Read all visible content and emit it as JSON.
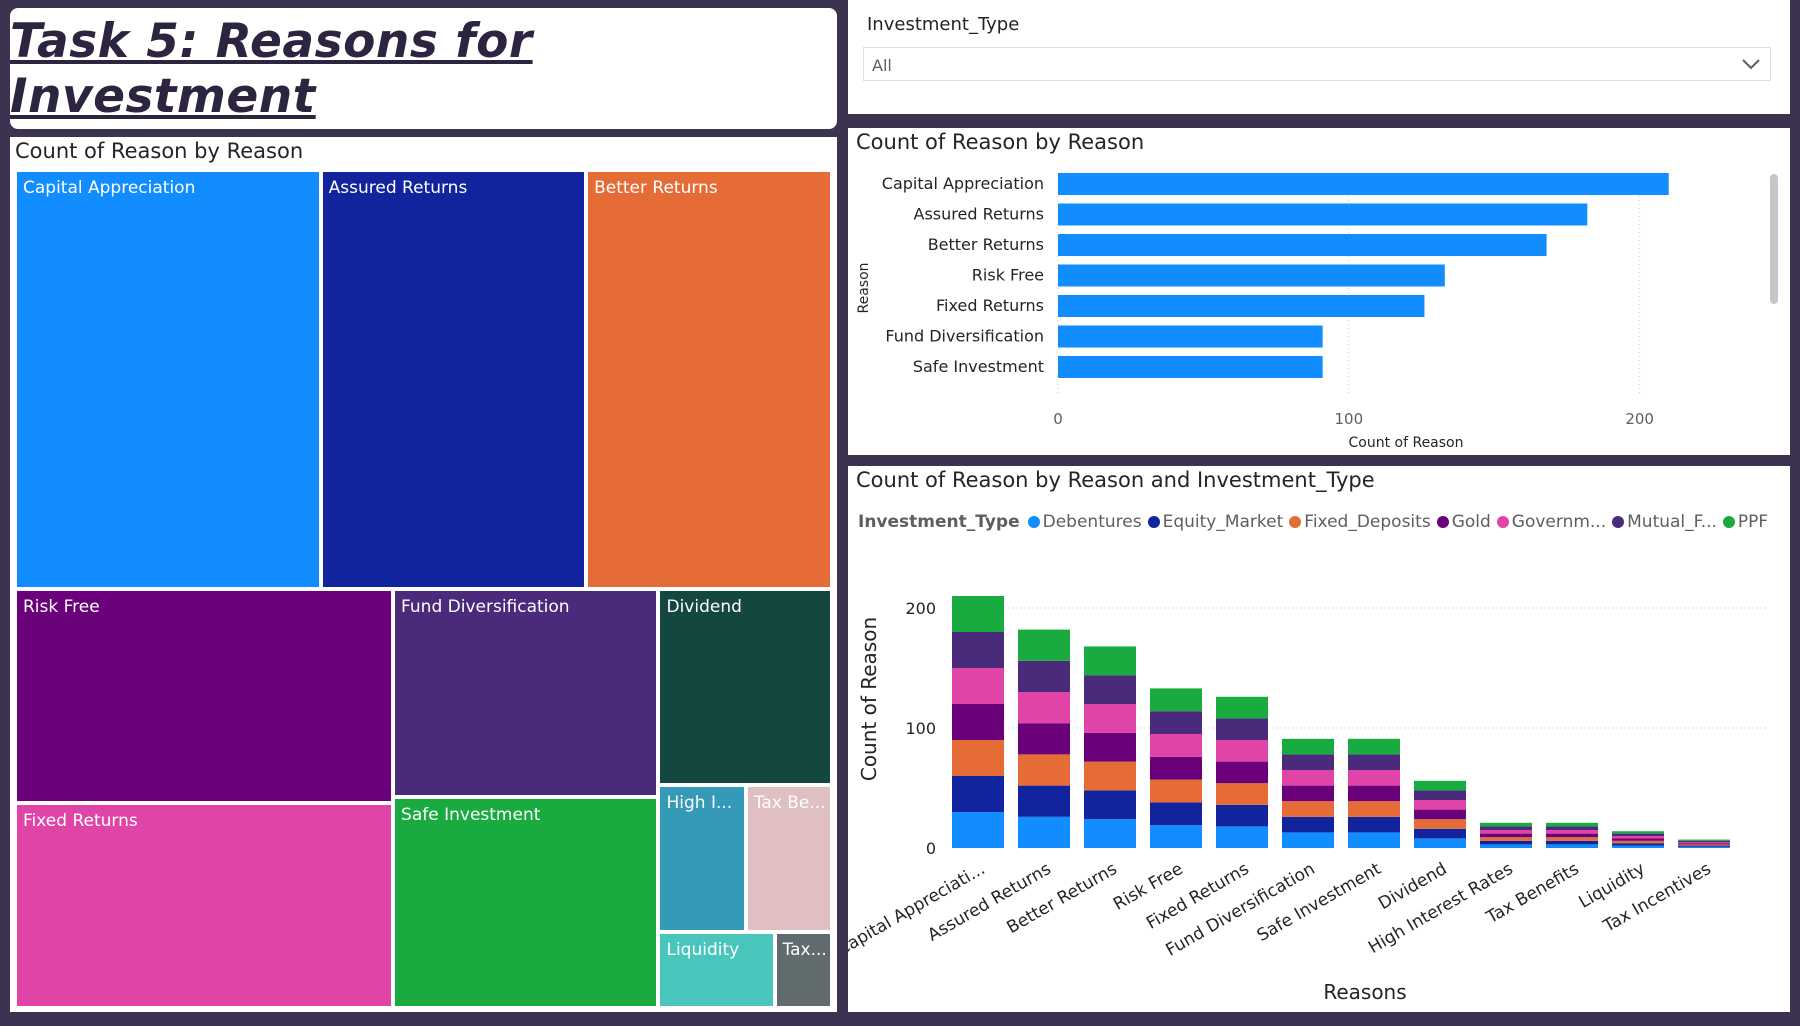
{
  "header": {
    "title": "Task 5: Reasons for Investment"
  },
  "slicer": {
    "label": "Investment_Type",
    "value": "All"
  },
  "treemap": {
    "title": "Count of Reason by Reason",
    "cells": [
      {
        "label": "Capital Appreciation",
        "color": "#118dff"
      },
      {
        "label": "Assured Returns",
        "color": "#12239e"
      },
      {
        "label": "Better Returns",
        "color": "#e66c37"
      },
      {
        "label": "Risk Free",
        "color": "#6b007b"
      },
      {
        "label": "Fixed Returns",
        "color": "#e044a7"
      },
      {
        "label": "Fund Diversification",
        "color": "#4a2b7b"
      },
      {
        "label": "Safe Investment",
        "color": "#1aab40"
      },
      {
        "label": "Dividend",
        "color": "#134740"
      },
      {
        "label": "High I...",
        "color": "#3599b8"
      },
      {
        "label": "Tax Be...",
        "color": "#dfbfbf"
      },
      {
        "label": "Liquidity",
        "color": "#4ac5bb"
      },
      {
        "label": "Tax...",
        "color": "#5f6b6d"
      }
    ]
  },
  "bar_chart": {
    "title": "Count of Reason by Reason",
    "bar_color": "#118dff",
    "chart_data": {
      "type": "bar",
      "orientation": "horizontal",
      "categories": [
        "Capital Appreciation",
        "Assured Returns",
        "Better Returns",
        "Risk Free",
        "Fixed Returns",
        "Fund Diversification",
        "Safe Investment"
      ],
      "values": [
        210,
        182,
        168,
        133,
        126,
        91,
        91
      ],
      "xlabel": "Count of Reason",
      "ylabel": "Reason",
      "xlim": [
        0,
        240
      ],
      "xticks": [
        "0",
        "100",
        "200"
      ]
    }
  },
  "stacked_chart": {
    "title": "Count of Reason by Reason and Investment_Type",
    "legend_title": "Investment_Type",
    "legend": [
      {
        "name": "Debentures",
        "color": "#118dff"
      },
      {
        "name": "Equity_Market",
        "color": "#12239e"
      },
      {
        "name": "Fixed_Deposits",
        "color": "#e66c37"
      },
      {
        "name": "Gold",
        "color": "#6b007b"
      },
      {
        "name": "Governm...",
        "color": "#e044a7"
      },
      {
        "name": "Mutual_F...",
        "color": "#4a2b7b"
      },
      {
        "name": "PPF",
        "color": "#1aab40"
      }
    ],
    "chart_data": {
      "type": "bar",
      "stacked": true,
      "categories": [
        "Capital Appreciati...",
        "Assured Returns",
        "Better Returns",
        "Risk Free",
        "Fixed Returns",
        "Fund Diversification",
        "Safe Investment",
        "Dividend",
        "High Interest Rates",
        "Tax Benefits",
        "Liquidity",
        "Tax Incentives"
      ],
      "series": [
        {
          "name": "Debentures",
          "values": [
            30,
            26,
            24,
            19,
            18,
            13,
            13,
            8,
            3,
            3,
            2,
            1
          ]
        },
        {
          "name": "Equity_Market",
          "values": [
            30,
            26,
            24,
            19,
            18,
            13,
            13,
            8,
            3,
            3,
            2,
            1
          ]
        },
        {
          "name": "Fixed_Deposits",
          "values": [
            30,
            26,
            24,
            19,
            18,
            13,
            13,
            8,
            3,
            3,
            2,
            1
          ]
        },
        {
          "name": "Gold",
          "values": [
            30,
            26,
            24,
            19,
            18,
            13,
            13,
            8,
            3,
            3,
            2,
            1
          ]
        },
        {
          "name": "Governm...",
          "values": [
            30,
            26,
            24,
            19,
            18,
            13,
            13,
            8,
            3,
            3,
            2,
            1
          ]
        },
        {
          "name": "Mutual_F...",
          "values": [
            30,
            26,
            24,
            19,
            18,
            13,
            13,
            8,
            3,
            3,
            2,
            1
          ]
        },
        {
          "name": "PPF",
          "values": [
            30,
            26,
            24,
            19,
            18,
            13,
            13,
            8,
            3,
            3,
            2,
            1
          ]
        }
      ],
      "xlabel": "Reasons",
      "ylabel": "Count of Reason",
      "ylim": [
        0,
        240
      ],
      "yticks": [
        "0",
        "100",
        "200"
      ]
    }
  }
}
